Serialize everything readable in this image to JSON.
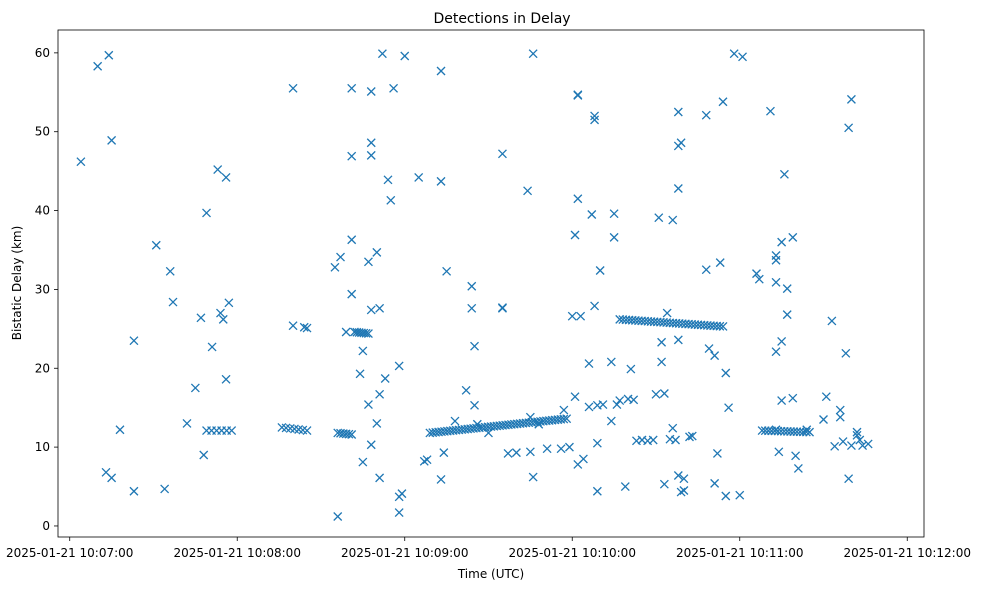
{
  "chart_data": {
    "type": "scatter",
    "title": "Detections in Delay",
    "xlabel": "Time (UTC)",
    "ylabel": "Bistatic Delay (km)",
    "color": "#1f77b4",
    "marker": "x",
    "xlim": [
      -4.2,
      306
    ],
    "ylim": [
      -1.4,
      62.9
    ],
    "grid": false,
    "x_unit": "seconds after 2025-01-21 10:07:00",
    "xticks": [
      {
        "value": 0,
        "label": "2025-01-21 10:07:00"
      },
      {
        "value": 60,
        "label": "2025-01-21 10:08:00"
      },
      {
        "value": 120,
        "label": "2025-01-21 10:09:00"
      },
      {
        "value": 180,
        "label": "2025-01-21 10:10:00"
      },
      {
        "value": 240,
        "label": "2025-01-21 10:11:00"
      },
      {
        "value": 300,
        "label": "2025-01-21 10:12:00"
      }
    ],
    "yticks": [
      0,
      10,
      20,
      30,
      40,
      50,
      60
    ],
    "tracks": [
      {
        "name": "track-1",
        "x_start": 49,
        "x_end": 58,
        "y_start": 12.1,
        "y_end": 12.1,
        "count": 6
      },
      {
        "name": "track-2",
        "x_start": 76,
        "x_end": 85,
        "y_start": 12.5,
        "y_end": 12.1,
        "count": 7
      },
      {
        "name": "track-3",
        "x_start": 96,
        "x_end": 101,
        "y_start": 11.8,
        "y_end": 11.6,
        "count": 6
      },
      {
        "name": "track-4",
        "x_start": 102,
        "x_end": 107,
        "y_start": 24.6,
        "y_end": 24.4,
        "count": 7
      },
      {
        "name": "track-5",
        "x_start": 129,
        "x_end": 178,
        "y_start": 11.8,
        "y_end": 13.6,
        "count": 48
      },
      {
        "name": "track-6",
        "x_start": 197,
        "x_end": 234,
        "y_start": 26.2,
        "y_end": 25.3,
        "count": 34
      },
      {
        "name": "track-7",
        "x_start": 248,
        "x_end": 265,
        "y_start": 12.1,
        "y_end": 11.9,
        "count": 16
      }
    ],
    "points": [
      [
        4,
        46.2
      ],
      [
        10,
        58.3
      ],
      [
        14,
        59.7
      ],
      [
        15,
        48.9
      ],
      [
        13,
        6.8
      ],
      [
        15,
        6.1
      ],
      [
        18,
        12.2
      ],
      [
        23,
        4.4
      ],
      [
        23,
        23.5
      ],
      [
        31,
        35.6
      ],
      [
        34,
        4.7
      ],
      [
        36,
        32.3
      ],
      [
        37,
        28.4
      ],
      [
        42,
        13.0
      ],
      [
        45,
        17.5
      ],
      [
        47,
        26.4
      ],
      [
        48,
        9.0
      ],
      [
        49,
        39.7
      ],
      [
        51,
        22.7
      ],
      [
        53,
        45.2
      ],
      [
        54,
        27.0
      ],
      [
        56,
        44.2
      ],
      [
        55,
        26.2
      ],
      [
        56,
        18.6
      ],
      [
        57,
        28.3
      ],
      [
        80,
        55.5
      ],
      [
        80,
        25.4
      ],
      [
        84,
        25.2
      ],
      [
        85,
        25.1
      ],
      [
        95,
        32.8
      ],
      [
        97,
        34.1
      ],
      [
        96,
        1.2
      ],
      [
        99,
        24.6
      ],
      [
        101,
        36.3
      ],
      [
        101,
        29.4
      ],
      [
        101,
        46.9
      ],
      [
        101,
        55.5
      ],
      [
        104,
        19.3
      ],
      [
        105,
        22.2
      ],
      [
        105,
        8.1
      ],
      [
        107,
        33.5
      ],
      [
        107,
        15.4
      ],
      [
        108,
        10.3
      ],
      [
        108,
        27.4
      ],
      [
        108,
        48.6
      ],
      [
        108,
        47.0
      ],
      [
        108,
        55.1
      ],
      [
        110,
        34.7
      ],
      [
        110,
        13.0
      ],
      [
        111,
        16.7
      ],
      [
        111,
        27.6
      ],
      [
        111,
        6.1
      ],
      [
        112,
        59.9
      ],
      [
        113,
        18.7
      ],
      [
        114,
        43.9
      ],
      [
        115,
        41.3
      ],
      [
        116,
        55.5
      ],
      [
        118,
        3.7
      ],
      [
        118,
        1.7
      ],
      [
        118,
        20.3
      ],
      [
        119,
        4.1
      ],
      [
        120,
        59.6
      ],
      [
        125,
        44.2
      ],
      [
        127,
        8.2
      ],
      [
        128,
        8.4
      ],
      [
        133,
        43.7
      ],
      [
        133,
        57.7
      ],
      [
        133,
        5.9
      ],
      [
        134,
        9.3
      ],
      [
        135,
        32.3
      ],
      [
        138,
        13.3
      ],
      [
        142,
        17.2
      ],
      [
        144,
        30.4
      ],
      [
        144,
        27.6
      ],
      [
        145,
        22.8
      ],
      [
        145,
        15.3
      ],
      [
        146,
        12.9
      ],
      [
        150,
        11.8
      ],
      [
        155,
        47.2
      ],
      [
        155,
        27.7
      ],
      [
        155,
        27.6
      ],
      [
        157,
        9.2
      ],
      [
        160,
        9.3
      ],
      [
        164,
        42.5
      ],
      [
        165,
        9.4
      ],
      [
        165,
        13.8
      ],
      [
        166,
        59.9
      ],
      [
        166,
        6.2
      ],
      [
        168,
        12.9
      ],
      [
        171,
        9.8
      ],
      [
        176,
        9.8
      ],
      [
        177,
        14.7
      ],
      [
        179,
        10.0
      ],
      [
        181,
        16.4
      ],
      [
        180,
        26.6
      ],
      [
        181,
        36.9
      ],
      [
        182,
        41.5
      ],
      [
        182,
        54.6
      ],
      [
        182,
        54.7
      ],
      [
        182,
        7.8
      ],
      [
        183,
        26.6
      ],
      [
        184,
        8.5
      ],
      [
        186,
        15.1
      ],
      [
        186,
        20.6
      ],
      [
        187,
        39.5
      ],
      [
        188,
        51.5
      ],
      [
        188,
        52.0
      ],
      [
        188,
        27.9
      ],
      [
        189,
        15.3
      ],
      [
        189,
        4.4
      ],
      [
        189,
        10.5
      ],
      [
        190,
        32.4
      ],
      [
        191,
        15.4
      ],
      [
        194,
        20.8
      ],
      [
        194,
        13.3
      ],
      [
        195,
        39.6
      ],
      [
        195,
        36.6
      ],
      [
        196,
        15.4
      ],
      [
        197,
        15.9
      ],
      [
        199,
        5.0
      ],
      [
        200,
        16.1
      ],
      [
        201,
        19.9
      ],
      [
        202,
        16.0
      ],
      [
        203,
        10.8
      ],
      [
        205,
        10.9
      ],
      [
        207,
        10.8
      ],
      [
        209,
        10.9
      ],
      [
        210,
        16.7
      ],
      [
        211,
        39.1
      ],
      [
        212,
        23.3
      ],
      [
        212,
        20.8
      ],
      [
        213,
        16.8
      ],
      [
        213,
        5.3
      ],
      [
        214,
        27.0
      ],
      [
        215,
        11.0
      ],
      [
        216,
        12.4
      ],
      [
        217,
        10.9
      ],
      [
        216,
        38.8
      ],
      [
        218,
        52.5
      ],
      [
        218,
        48.2
      ],
      [
        218,
        42.8
      ],
      [
        218,
        23.6
      ],
      [
        218,
        6.4
      ],
      [
        219,
        48.6
      ],
      [
        219,
        4.3
      ],
      [
        220,
        4.5
      ],
      [
        220,
        6.0
      ],
      [
        222,
        11.3
      ],
      [
        223,
        11.4
      ],
      [
        228,
        52.1
      ],
      [
        228,
        32.5
      ],
      [
        229,
        22.5
      ],
      [
        231,
        21.6
      ],
      [
        231,
        5.4
      ],
      [
        232,
        9.2
      ],
      [
        233,
        33.4
      ],
      [
        234,
        53.8
      ],
      [
        235,
        3.8
      ],
      [
        235,
        19.4
      ],
      [
        236,
        15.0
      ],
      [
        238,
        59.9
      ],
      [
        240,
        3.9
      ],
      [
        241,
        59.5
      ],
      [
        246,
        32.0
      ],
      [
        247,
        31.3
      ],
      [
        251,
        52.6
      ],
      [
        253,
        33.7
      ],
      [
        253,
        34.3
      ],
      [
        253,
        30.9
      ],
      [
        253,
        22.1
      ],
      [
        253,
        12.2
      ],
      [
        254,
        9.4
      ],
      [
        255,
        23.4
      ],
      [
        255,
        36.0
      ],
      [
        255,
        15.9
      ],
      [
        256,
        44.6
      ],
      [
        257,
        26.8
      ],
      [
        257,
        30.1
      ],
      [
        259,
        36.6
      ],
      [
        259,
        16.2
      ],
      [
        260,
        8.9
      ],
      [
        261,
        7.3
      ],
      [
        264,
        12.2
      ],
      [
        271,
        16.4
      ],
      [
        273,
        26.0
      ],
      [
        274,
        10.1
      ],
      [
        276,
        14.7
      ],
      [
        276,
        13.8
      ],
      [
        277,
        10.7
      ],
      [
        278,
        21.9
      ],
      [
        279,
        50.5
      ],
      [
        280,
        54.1
      ],
      [
        279,
        6.0
      ],
      [
        280,
        10.2
      ],
      [
        282,
        11.9
      ],
      [
        283,
        10.9
      ],
      [
        284,
        10.2
      ],
      [
        286,
        10.4
      ],
      [
        270,
        13.5
      ],
      [
        282,
        11.5
      ]
    ]
  }
}
